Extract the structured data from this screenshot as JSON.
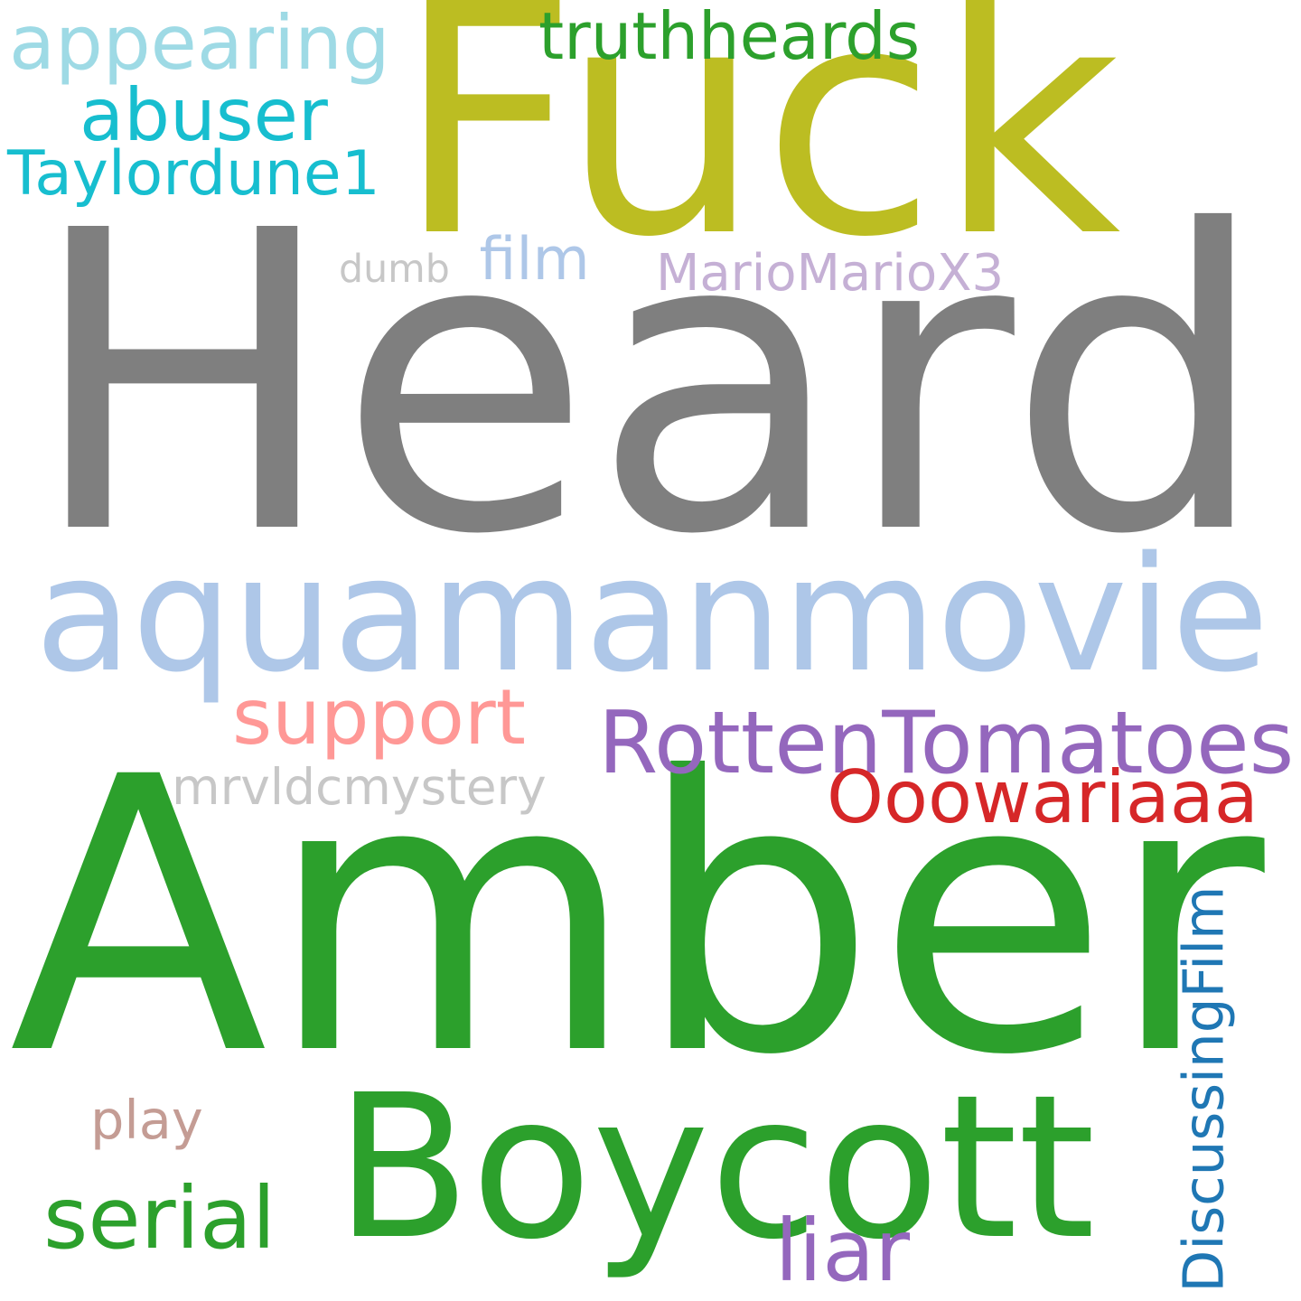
{
  "background": "#ffffff",
  "words": [
    {
      "id": "heard",
      "text": "Heard",
      "color": "#7f7f7f"
    },
    {
      "id": "amber",
      "text": "Amber",
      "color": "#2ca02c"
    },
    {
      "id": "fuck",
      "text": "Fuck",
      "color": "#bcbd22"
    },
    {
      "id": "aquamanmovie",
      "text": "aquamanmovie",
      "color": "#aec7e8"
    },
    {
      "id": "boycott",
      "text": "Boycott",
      "color": "#2ca02c"
    },
    {
      "id": "rottentomatoes",
      "text": "RottenTomatoes",
      "color": "#9467bd"
    },
    {
      "id": "ooowariaaa",
      "text": "Ooowariaaa",
      "color": "#d62728"
    },
    {
      "id": "appearing",
      "text": "appearing",
      "color": "#9edae5"
    },
    {
      "id": "truthheards",
      "text": "truthheards",
      "color": "#2ca02c"
    },
    {
      "id": "abuser",
      "text": "abuser",
      "color": "#17becf"
    },
    {
      "id": "taylordune1",
      "text": "Taylordune1",
      "color": "#17becf"
    },
    {
      "id": "support",
      "text": "support",
      "color": "#ff9896"
    },
    {
      "id": "serial",
      "text": "serial",
      "color": "#2ca02c"
    },
    {
      "id": "liar",
      "text": "liar",
      "color": "#9467bd"
    },
    {
      "id": "discussingfilm",
      "text": "DiscussingFilm",
      "color": "#1f77b4"
    },
    {
      "id": "mariomariox3",
      "text": "MarioMarioX3",
      "color": "#c5b0d5"
    },
    {
      "id": "mrvldcmystery",
      "text": "mrvldcmystery",
      "color": "#c7c7c7"
    },
    {
      "id": "dumb",
      "text": "dumb",
      "color": "#c7c7c7"
    },
    {
      "id": "film",
      "text": "film",
      "color": "#aec7e8"
    },
    {
      "id": "play",
      "text": "play",
      "color": "#c49c94"
    }
  ]
}
